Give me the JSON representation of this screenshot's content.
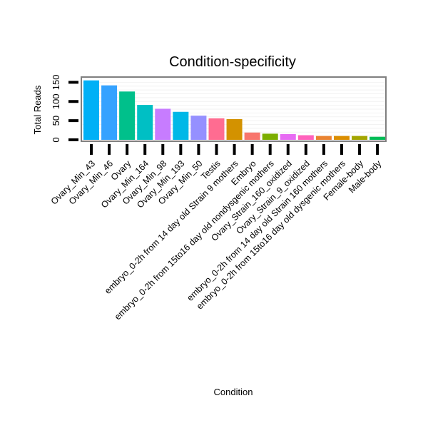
{
  "chart_data": {
    "type": "bar",
    "title": "Condition-specificity",
    "xlabel": "Condition",
    "ylabel": "Total Reads",
    "ylim": [
      0,
      160
    ],
    "yticks": [
      0,
      50,
      100,
      150
    ],
    "categories": [
      "Ovary_Min_43",
      "Ovary_Min_46",
      "Ovary",
      "Ovary_Min_164",
      "Ovary_Min_98",
      "Ovary_Min_193",
      "Ovary_Min_50",
      "Testis",
      "embryo_0-2h from 14 day old Strain 9 mothers",
      "Embryo",
      "embryo_0-2h from 15to16 day old nondysgenic mothers",
      "Ovary_Strain_160_oxidized",
      "Ovary_Strain_9_oxidized",
      "embryo_0-2h from 14 day old Strain 160 mothers",
      "embryo_0-2h from 15to16 day old dysgenic mothers",
      "Female-body",
      "Male-body"
    ],
    "values": [
      155,
      142,
      126,
      91,
      81,
      73,
      63,
      56,
      54,
      19,
      16,
      15,
      12,
      10,
      10,
      10,
      8
    ],
    "colors": [
      "#00b0f6",
      "#35a2ff",
      "#00c08b",
      "#00bfc4",
      "#c77cff",
      "#00b8e7",
      "#9590ff",
      "#ff6c91",
      "#d39200",
      "#f8766d",
      "#7cae00",
      "#e76bf3",
      "#ff62bc",
      "#ea8331",
      "#db8e00",
      "#a3a500",
      "#00bc56"
    ],
    "grid": true,
    "legend": "none"
  }
}
